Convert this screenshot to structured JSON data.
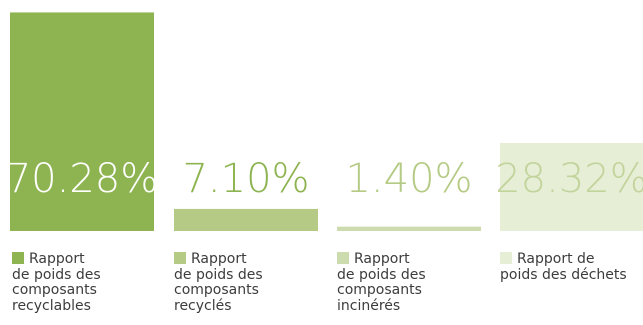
{
  "chart_data": {
    "type": "bar",
    "categories": [
      "Rapport de poids des composants recyclables",
      "Rapport de poids des composants recyclés",
      "Rapport de poids des composants incinérés",
      "Rapport de poids des déchets"
    ],
    "values": [
      70.28,
      7.1,
      1.4,
      28.32
    ],
    "value_labels": [
      "70.28%",
      "7.10%",
      "1.40%",
      "28.32%"
    ],
    "legend_labels": [
      "Rapport\nde poids des\ncomposants\nrecyclables",
      "Rapport\nde poids des\ncomposants\nrecyclés",
      "Rapport\nde poids des\ncomposants\nincinérés",
      "Rapport de\npoids des  déchets"
    ],
    "bar_colors": [
      "#8db451",
      "#b5ca84",
      "#cddcae",
      "#e6eed6"
    ],
    "value_label_colors": [
      "#ffffff",
      "#8db451",
      "#b5ca84",
      "#c2d49c"
    ],
    "ylim": [
      0,
      100
    ],
    "grid": false,
    "legend_placement": "bottom"
  }
}
